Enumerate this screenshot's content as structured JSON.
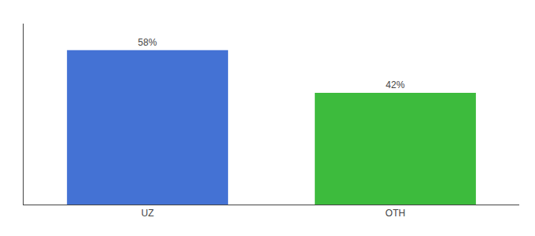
{
  "chart_data": {
    "type": "bar",
    "categories": [
      "UZ",
      "OTH"
    ],
    "values": [
      58,
      42
    ],
    "value_labels": [
      "58%",
      "42%"
    ],
    "colors": [
      "#4472d4",
      "#3dbb3d"
    ],
    "ylim": [
      0,
      68
    ],
    "tick_labels": "x",
    "data_labels": true,
    "grid": false
  }
}
